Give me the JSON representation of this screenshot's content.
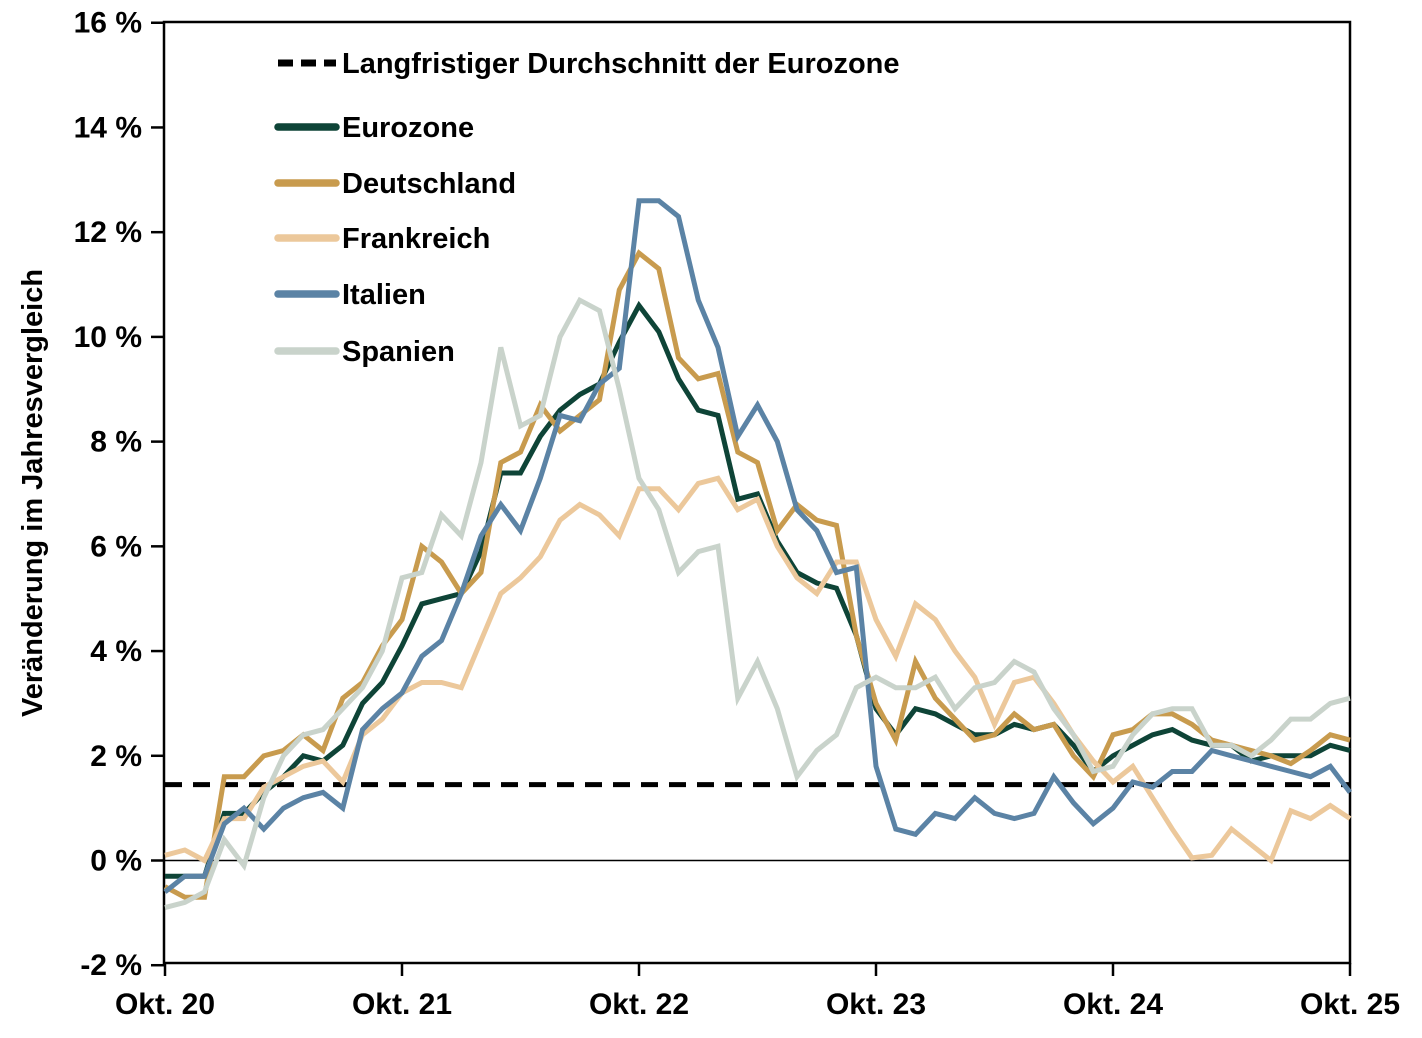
{
  "chart_data": {
    "type": "line",
    "title": "",
    "ylabel": "Veränderung im Jahresvergleich",
    "xlabel": "",
    "ylim": [
      -2,
      16
    ],
    "x_months_total": 60,
    "grid": false,
    "legend_position": "top-left-inside",
    "y_ticks": [
      {
        "value": 16,
        "label": "16 %"
      },
      {
        "value": 14,
        "label": "14 %"
      },
      {
        "value": 12,
        "label": "12 %"
      },
      {
        "value": 10,
        "label": "10 %"
      },
      {
        "value": 8,
        "label": "8 %"
      },
      {
        "value": 6,
        "label": "6 %"
      },
      {
        "value": 4,
        "label": "4 %"
      },
      {
        "value": 2,
        "label": "2 %"
      },
      {
        "value": 0,
        "label": "0 %"
      },
      {
        "value": -2,
        "label": "-2 %"
      }
    ],
    "x_ticks": [
      {
        "month": 0,
        "label": "Okt. 20"
      },
      {
        "month": 12,
        "label": "Okt. 21"
      },
      {
        "month": 24,
        "label": "Okt. 22"
      },
      {
        "month": 36,
        "label": "Okt. 23"
      },
      {
        "month": 48,
        "label": "Okt. 24"
      },
      {
        "month": 60,
        "label": "Okt. 25"
      }
    ],
    "average_line": {
      "label": "Langfristiger Durchschnitt der Eurozone",
      "value": 1.45,
      "color": "#000000",
      "style": "dashed"
    },
    "series": [
      {
        "name": "Eurozone",
        "color": "#0e4437",
        "values": [
          -0.3,
          -0.3,
          -0.3,
          0.9,
          0.9,
          1.3,
          1.6,
          2.0,
          1.9,
          2.2,
          3.0,
          3.4,
          4.1,
          4.9,
          5.0,
          5.1,
          5.9,
          7.4,
          7.4,
          8.1,
          8.6,
          8.9,
          9.1,
          9.9,
          10.6,
          10.1,
          9.2,
          8.6,
          8.5,
          6.9,
          7.0,
          6.1,
          5.5,
          5.3,
          5.2,
          4.3,
          2.9,
          2.4,
          2.9,
          2.8,
          2.6,
          2.4,
          2.4,
          2.6,
          2.5,
          2.6,
          2.2,
          1.7,
          2.0,
          2.2,
          2.4,
          2.5,
          2.3,
          2.2,
          2.2,
          1.9,
          2.0,
          2.0,
          2.0,
          2.2,
          2.1
        ]
      },
      {
        "name": "Deutschland",
        "color": "#c89b4e",
        "values": [
          -0.5,
          -0.7,
          -0.7,
          1.6,
          1.6,
          2.0,
          2.1,
          2.4,
          2.1,
          3.1,
          3.4,
          4.1,
          4.6,
          6.0,
          5.7,
          5.1,
          5.5,
          7.6,
          7.8,
          8.7,
          8.2,
          8.5,
          8.8,
          10.9,
          11.6,
          11.3,
          9.6,
          9.2,
          9.3,
          7.8,
          7.6,
          6.3,
          6.8,
          6.5,
          6.4,
          4.3,
          3.0,
          2.3,
          3.8,
          3.1,
          2.7,
          2.3,
          2.4,
          2.8,
          2.5,
          2.6,
          2.0,
          1.6,
          2.4,
          2.5,
          2.8,
          2.8,
          2.6,
          2.3,
          2.2,
          2.1,
          2.0,
          1.85,
          2.1,
          2.4,
          2.3
        ]
      },
      {
        "name": "Frankreich",
        "color": "#ecc89b",
        "values": [
          0.1,
          0.2,
          0.0,
          0.8,
          0.8,
          1.4,
          1.6,
          1.8,
          1.9,
          1.5,
          2.4,
          2.7,
          3.2,
          3.4,
          3.4,
          3.3,
          4.2,
          5.1,
          5.4,
          5.8,
          6.5,
          6.8,
          6.6,
          6.2,
          7.1,
          7.1,
          6.7,
          7.2,
          7.3,
          6.7,
          6.9,
          6.0,
          5.4,
          5.1,
          5.7,
          5.7,
          4.6,
          3.9,
          4.9,
          4.6,
          4.0,
          3.5,
          2.6,
          3.4,
          3.5,
          3.0,
          2.4,
          1.9,
          1.5,
          1.8,
          1.2,
          0.6,
          0.05,
          0.1,
          0.6,
          0.3,
          0.0,
          0.95,
          0.8,
          1.05,
          0.8
        ]
      },
      {
        "name": "Italien",
        "color": "#5b83a5",
        "values": [
          -0.6,
          -0.3,
          -0.3,
          0.7,
          1.0,
          0.6,
          1.0,
          1.2,
          1.3,
          1.0,
          2.5,
          2.9,
          3.2,
          3.9,
          4.2,
          5.1,
          6.2,
          6.8,
          6.3,
          7.3,
          8.5,
          8.4,
          9.1,
          9.4,
          12.6,
          12.6,
          12.3,
          10.7,
          9.8,
          8.1,
          8.7,
          8.0,
          6.7,
          6.3,
          5.5,
          5.6,
          1.8,
          0.6,
          0.5,
          0.9,
          0.8,
          1.2,
          0.9,
          0.8,
          0.9,
          1.6,
          1.1,
          0.7,
          1.0,
          1.5,
          1.4,
          1.7,
          1.7,
          2.1,
          2.0,
          1.9,
          1.8,
          1.7,
          1.6,
          1.8,
          1.3
        ]
      },
      {
        "name": "Spanien",
        "color": "#c9d3cb",
        "values": [
          -0.9,
          -0.8,
          -0.6,
          0.4,
          -0.1,
          1.2,
          2.0,
          2.4,
          2.5,
          2.9,
          3.3,
          4.0,
          5.4,
          5.5,
          6.6,
          6.2,
          7.6,
          9.8,
          8.3,
          8.5,
          10.0,
          10.7,
          10.5,
          9.0,
          7.3,
          6.7,
          5.5,
          5.9,
          6.0,
          3.1,
          3.8,
          2.9,
          1.6,
          2.1,
          2.4,
          3.3,
          3.5,
          3.3,
          3.3,
          3.5,
          2.9,
          3.3,
          3.4,
          3.8,
          3.6,
          2.9,
          2.4,
          1.7,
          1.8,
          2.4,
          2.8,
          2.9,
          2.9,
          2.2,
          2.2,
          2.0,
          2.3,
          2.7,
          2.7,
          3.0,
          3.1
        ]
      }
    ]
  }
}
